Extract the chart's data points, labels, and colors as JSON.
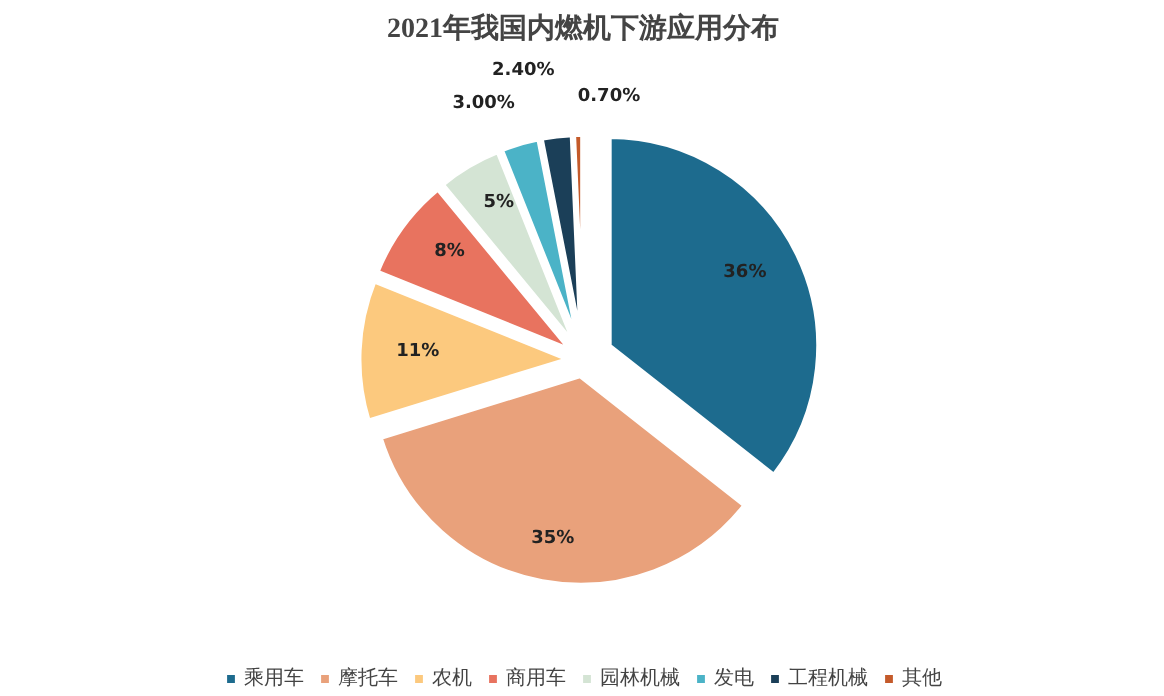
{
  "chart_data": {
    "type": "pie",
    "title": "2021年我国内燃机下游应用分布",
    "categories": [
      "乘用车",
      "摩托车",
      "农机",
      "商用车",
      "园林机械",
      "发电",
      "工程机械",
      "其他"
    ],
    "values": [
      36,
      35,
      11,
      8,
      5,
      3.0,
      2.4,
      0.7
    ],
    "value_labels": [
      "36%",
      "35%",
      "11%",
      "8%",
      "5%",
      "3.00%",
      "2.40%",
      "0.70%"
    ],
    "colors": [
      "#1d6b8e",
      "#e9a17b",
      "#fcc97e",
      "#e8735f",
      "#d4e4d4",
      "#4bb3c7",
      "#1b3f58",
      "#c45a2a"
    ],
    "legend": "bottom"
  }
}
